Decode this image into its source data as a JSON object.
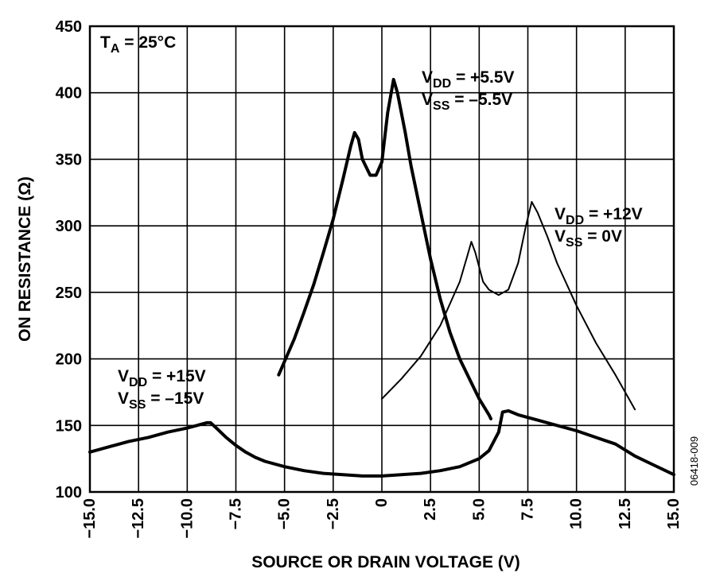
{
  "chart_data": {
    "type": "line",
    "title": "",
    "xlabel": "SOURCE OR DRAIN VOLTAGE (V)",
    "ylabel": "ON RESISTANCE (Ω)",
    "xlim": [
      -15,
      15
    ],
    "ylim": [
      100,
      450
    ],
    "grid": true,
    "x_ticks": [
      "−15.0",
      "−12.5",
      "−10.0",
      "−7.5",
      "−5.0",
      "−2.5",
      "0",
      "2.5",
      "5.0",
      "7.5",
      "10.0",
      "12.5",
      "15.0"
    ],
    "x_tick_values": [
      -15,
      -12.5,
      -10,
      -7.5,
      -5,
      -2.5,
      0,
      2.5,
      5,
      7.5,
      10,
      12.5,
      15
    ],
    "y_ticks": [
      "100",
      "150",
      "200",
      "250",
      "300",
      "350",
      "400",
      "450"
    ],
    "y_tick_values": [
      100,
      150,
      200,
      250,
      300,
      350,
      400,
      450
    ],
    "temperature_label": {
      "main": "T",
      "sub": "A",
      "rest": " = 25°C"
    },
    "figure_code": "06418-009",
    "series": [
      {
        "label_lines": [
          {
            "main": "V",
            "sub": "DD",
            "rest": " = +15V"
          },
          {
            "main": "V",
            "sub": "SS",
            "rest": " = –15V"
          }
        ],
        "stroke": "#000000",
        "thickness": "bold",
        "points": [
          [
            -15,
            130
          ],
          [
            -14,
            134
          ],
          [
            -13,
            138
          ],
          [
            -12,
            141
          ],
          [
            -11,
            145
          ],
          [
            -10,
            148
          ],
          [
            -9.5,
            150
          ],
          [
            -9,
            152
          ],
          [
            -8.8,
            152
          ],
          [
            -8.5,
            148
          ],
          [
            -8,
            141
          ],
          [
            -7.5,
            135
          ],
          [
            -7,
            130
          ],
          [
            -6.5,
            126
          ],
          [
            -6,
            123
          ],
          [
            -5,
            119
          ],
          [
            -4,
            116
          ],
          [
            -3,
            114
          ],
          [
            -2,
            113
          ],
          [
            -1,
            112
          ],
          [
            0,
            112
          ],
          [
            1,
            113
          ],
          [
            2,
            114
          ],
          [
            3,
            116
          ],
          [
            4,
            119
          ],
          [
            5,
            125
          ],
          [
            5.5,
            131
          ],
          [
            6,
            145
          ],
          [
            6.2,
            160
          ],
          [
            6.5,
            161
          ],
          [
            7,
            158
          ],
          [
            8,
            154
          ],
          [
            9,
            150
          ],
          [
            10,
            146
          ],
          [
            11,
            141
          ],
          [
            12,
            136
          ],
          [
            13,
            127
          ],
          [
            14,
            120
          ],
          [
            15,
            113
          ]
        ]
      },
      {
        "label_lines": [
          {
            "main": "V",
            "sub": "DD",
            "rest": " = +5.5V"
          },
          {
            "main": "V",
            "sub": "SS",
            "rest": " = –5.5V"
          }
        ],
        "stroke": "#000000",
        "thickness": "bold",
        "points": [
          [
            -5.3,
            188
          ],
          [
            -4.5,
            215
          ],
          [
            -4,
            235
          ],
          [
            -3.5,
            256
          ],
          [
            -3,
            280
          ],
          [
            -2.5,
            305
          ],
          [
            -2,
            335
          ],
          [
            -1.6,
            360
          ],
          [
            -1.4,
            370
          ],
          [
            -1.2,
            365
          ],
          [
            -1,
            350
          ],
          [
            -0.6,
            338
          ],
          [
            -0.3,
            338
          ],
          [
            0,
            348
          ],
          [
            0.3,
            385
          ],
          [
            0.6,
            410
          ],
          [
            0.8,
            400
          ],
          [
            1.2,
            370
          ],
          [
            1.5,
            345
          ],
          [
            2,
            310
          ],
          [
            2.5,
            275
          ],
          [
            3,
            245
          ],
          [
            3.5,
            220
          ],
          [
            4,
            200
          ],
          [
            4.5,
            185
          ],
          [
            5,
            170
          ],
          [
            5.5,
            158
          ],
          [
            5.6,
            155
          ]
        ]
      },
      {
        "label_lines": [
          {
            "main": "V",
            "sub": "DD",
            "rest": " = +12V"
          },
          {
            "main": "V",
            "sub": "SS",
            "rest": " = 0V"
          }
        ],
        "stroke": "#000000",
        "thickness": "normal",
        "points": [
          [
            0,
            170
          ],
          [
            1,
            185
          ],
          [
            2,
            202
          ],
          [
            3,
            225
          ],
          [
            4,
            258
          ],
          [
            4.4,
            278
          ],
          [
            4.6,
            288
          ],
          [
            4.8,
            280
          ],
          [
            5.2,
            258
          ],
          [
            5.5,
            252
          ],
          [
            6,
            248
          ],
          [
            6.5,
            252
          ],
          [
            7,
            272
          ],
          [
            7.4,
            300
          ],
          [
            7.7,
            318
          ],
          [
            8,
            310
          ],
          [
            8.5,
            292
          ],
          [
            9,
            272
          ],
          [
            10,
            240
          ],
          [
            11,
            212
          ],
          [
            12,
            188
          ],
          [
            13,
            162
          ]
        ]
      }
    ]
  }
}
